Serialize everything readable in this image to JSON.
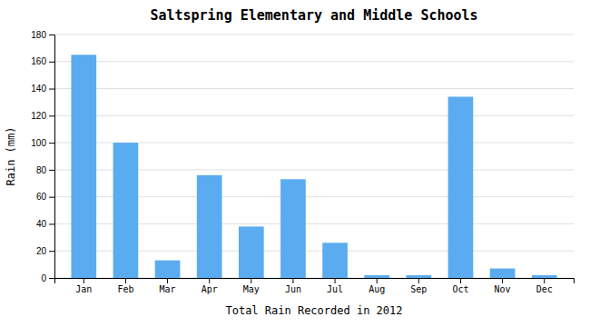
{
  "chart_data": {
    "type": "bar",
    "title": "Saltspring Elementary and Middle Schools",
    "xlabel": "Total Rain Recorded in 2012",
    "ylabel": "Rain (mm)",
    "categories": [
      "Jan",
      "Feb",
      "Mar",
      "Apr",
      "May",
      "Jun",
      "Jul",
      "Aug",
      "Sep",
      "Oct",
      "Nov",
      "Dec"
    ],
    "values": [
      165,
      100,
      13,
      76,
      38,
      73,
      26,
      2,
      2,
      134,
      7,
      2
    ],
    "color": "#5aabf0",
    "ylim": [
      0,
      180
    ],
    "yticks": [
      0,
      20,
      40,
      60,
      80,
      100,
      120,
      140,
      160,
      180
    ],
    "grid": true
  }
}
